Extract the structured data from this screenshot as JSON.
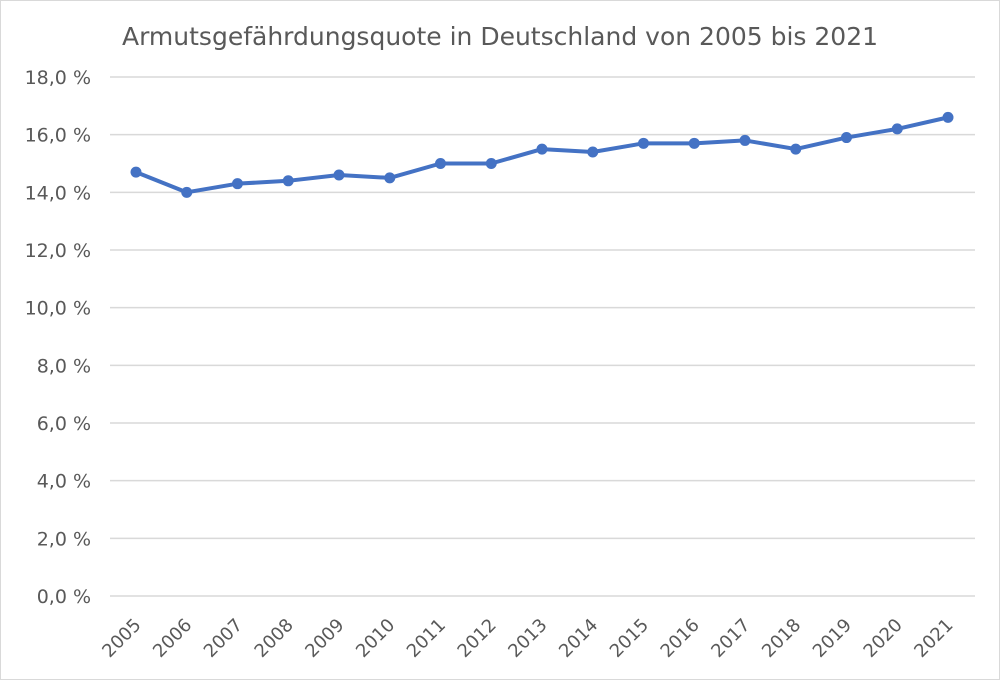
{
  "chart_data": {
    "type": "line",
    "title": "Armutsgefährdungsquote in Deutschland von 2005 bis 2021",
    "xlabel": "",
    "ylabel": "",
    "x": [
      "2005",
      "2006",
      "2007",
      "2008",
      "2009",
      "2010",
      "2011",
      "2012",
      "2013",
      "2014",
      "2015",
      "2016",
      "2017",
      "2018",
      "2019",
      "2020",
      "2021"
    ],
    "series": [
      {
        "values": [
          14.7,
          14.0,
          14.3,
          14.4,
          14.6,
          14.5,
          15.0,
          15.0,
          15.5,
          15.4,
          15.7,
          15.7,
          15.8,
          15.5,
          15.9,
          16.2,
          16.6
        ]
      }
    ],
    "ylim": [
      0,
      18
    ],
    "yticks": [
      0,
      2,
      4,
      6,
      8,
      10,
      12,
      14,
      16,
      18
    ],
    "ytick_labels": [
      "0,0 %",
      "2,0 %",
      "4,0 %",
      "6,0 %",
      "8,0 %",
      "10,0 %",
      "12,0 %",
      "14,0 %",
      "16,0 %",
      "18,0 %"
    ],
    "grid": true,
    "legend": "none",
    "color": "#4472c4"
  }
}
